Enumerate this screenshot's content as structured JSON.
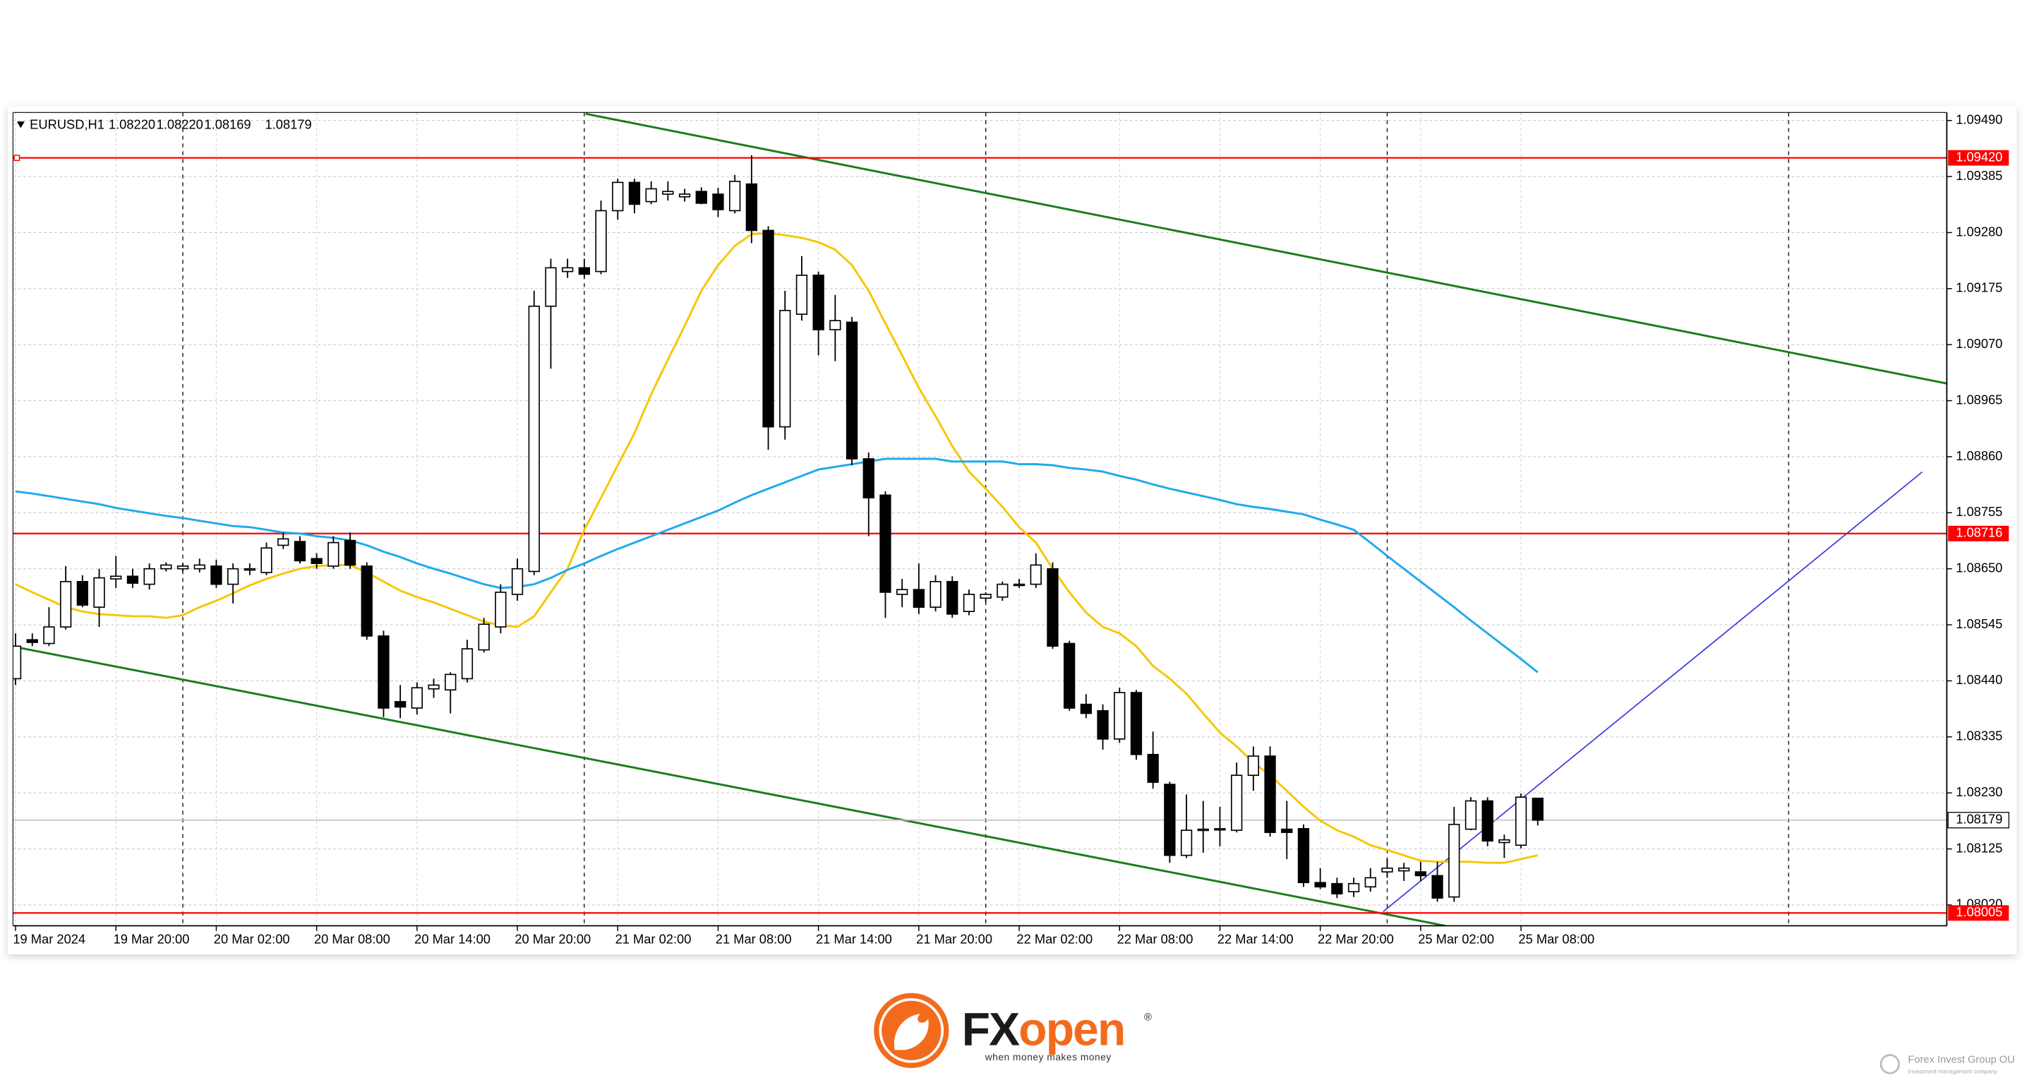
{
  "chart_data": {
    "type": "candlestick",
    "title": "EURUSD,H1",
    "ohlc_labels": [
      "1.08220",
      "1.08220",
      "1.08169",
      "1.08179"
    ],
    "categories": [
      "19 Mar 2024",
      null,
      null,
      null,
      null,
      null,
      "19 Mar 20:00",
      null,
      null,
      null,
      null,
      null,
      "20 Mar 02:00",
      null,
      null,
      null,
      null,
      null,
      "20 Mar 08:00",
      null,
      null,
      null,
      null,
      null,
      "20 Mar 14:00",
      null,
      null,
      null,
      null,
      null,
      "20 Mar 20:00",
      null,
      null,
      null,
      null,
      null,
      "21 Mar 02:00",
      null,
      null,
      null,
      null,
      null,
      "21 Mar 08:00",
      null,
      null,
      null,
      null,
      null,
      "21 Mar 14:00",
      null,
      null,
      null,
      null,
      null,
      "21 Mar 20:00",
      null,
      null,
      null,
      null,
      null,
      "22 Mar 02:00",
      null,
      null,
      null,
      null,
      null,
      "22 Mar 08:00",
      null,
      null,
      null,
      null,
      null,
      "22 Mar 14:00",
      null,
      null,
      null,
      null,
      null,
      "22 Mar 20:00",
      null,
      null,
      null,
      null,
      null,
      "25 Mar 02:00",
      null,
      null,
      null,
      null,
      null,
      "25 Mar 08:00",
      null
    ],
    "open": [
      1.08444,
      1.08517,
      1.0851,
      1.08541,
      1.08626,
      1.08578,
      1.08631,
      1.08636,
      1.08621,
      1.0865,
      1.0865,
      1.0865,
      1.08655,
      1.08621,
      1.08648,
      1.08643,
      1.08694,
      1.08701,
      1.08669,
      1.08655,
      1.08703,
      1.08655,
      1.08524,
      1.08401,
      1.08389,
      1.08425,
      1.08423,
      1.08444,
      1.08498,
      1.08541,
      1.08602,
      1.08645,
      1.09142,
      1.09207,
      1.09214,
      1.09207,
      1.09321,
      1.09374,
      1.09338,
      1.09352,
      1.09347,
      1.09357,
      1.09352,
      1.09321,
      1.09371,
      1.09284,
      1.08916,
      1.09127,
      1.092,
      1.09098,
      1.09112,
      1.08856,
      1.08788,
      1.08602,
      1.08611,
      1.08578,
      1.08626,
      1.0857,
      1.08595,
      1.08597,
      1.08619,
      1.08621,
      1.0865,
      1.0851,
      1.08396,
      1.08384,
      1.08331,
      1.08418,
      1.08302,
      1.08246,
      1.08113,
      1.0816,
      1.08162,
      1.0816,
      1.08263,
      1.08299,
      1.08162,
      1.08163,
      1.08062,
      1.0806,
      1.08045,
      1.08054,
      1.08082,
      1.08084,
      1.08082,
      1.08075,
      1.08035,
      1.08162,
      1.08215,
      1.08137,
      1.08132,
      1.0822
    ],
    "high": [
      1.08529,
      1.08529,
      1.08578,
      1.08655,
      1.08638,
      1.0865,
      1.08674,
      1.0865,
      1.0866,
      1.08662,
      1.0866,
      1.08669,
      1.08667,
      1.0866,
      1.0866,
      1.08699,
      1.08718,
      1.08711,
      1.08679,
      1.08711,
      1.08718,
      1.08662,
      1.08534,
      1.08432,
      1.08437,
      1.08444,
      1.08456,
      1.08517,
      1.08558,
      1.08621,
      1.08669,
      1.09171,
      1.09231,
      1.09231,
      1.09231,
      1.0934,
      1.09381,
      1.09381,
      1.09376,
      1.09376,
      1.09362,
      1.09365,
      1.09364,
      1.09388,
      1.09425,
      1.09292,
      1.09171,
      1.09236,
      1.09207,
      1.09163,
      1.09122,
      1.08868,
      1.08795,
      1.08631,
      1.0866,
      1.08638,
      1.08636,
      1.08611,
      1.08606,
      1.08626,
      1.08631,
      1.08679,
      1.08662,
      1.08515,
      1.08415,
      1.08396,
      1.08427,
      1.08423,
      1.08345,
      1.08251,
      1.08227,
      1.08215,
      1.08204,
      1.08287,
      1.08317,
      1.08317,
      1.08215,
      1.08171,
      1.08089,
      1.08071,
      1.08071,
      1.08089,
      1.08106,
      1.08099,
      1.08101,
      1.08101,
      1.08204,
      1.08222,
      1.08222,
      1.08152,
      1.08229,
      1.0822
    ],
    "low": [
      1.08432,
      1.08505,
      1.08505,
      1.08536,
      1.08578,
      1.08541,
      1.08614,
      1.08614,
      1.08611,
      1.08645,
      1.08645,
      1.08643,
      1.08614,
      1.08585,
      1.08638,
      1.08638,
      1.08687,
      1.0866,
      1.0865,
      1.0865,
      1.0865,
      1.08517,
      1.08372,
      1.0837,
      1.08377,
      1.08408,
      1.08379,
      1.08437,
      1.08493,
      1.08529,
      1.0859,
      1.08638,
      1.09025,
      1.09195,
      1.09195,
      1.09202,
      1.09304,
      1.09316,
      1.09333,
      1.0934,
      1.09338,
      1.09333,
      1.09309,
      1.09316,
      1.0926,
      1.08873,
      1.08892,
      1.09115,
      1.0905,
      1.09039,
      1.08844,
      1.08711,
      1.08558,
      1.08578,
      1.08565,
      1.0857,
      1.08558,
      1.08563,
      1.08587,
      1.0859,
      1.08614,
      1.08614,
      1.085,
      1.08384,
      1.0837,
      1.08311,
      1.08324,
      1.08292,
      1.08238,
      1.08099,
      1.08108,
      1.08118,
      1.0813,
      1.08156,
      1.08234,
      1.08148,
      1.08106,
      1.08054,
      1.0805,
      1.08033,
      1.08035,
      1.08045,
      1.08071,
      1.08065,
      1.08065,
      1.08026,
      1.08026,
      1.0816,
      1.0813,
      1.08108,
      1.08126,
      1.08169
    ],
    "close": [
      1.08505,
      1.08512,
      1.08541,
      1.08626,
      1.08582,
      1.08633,
      1.08636,
      1.08623,
      1.0865,
      1.08657,
      1.08655,
      1.08657,
      1.08621,
      1.0865,
      1.0865,
      1.08689,
      1.08706,
      1.08665,
      1.0866,
      1.08699,
      1.08657,
      1.08524,
      1.08389,
      1.08391,
      1.08427,
      1.08432,
      1.08452,
      1.085,
      1.08546,
      1.08606,
      1.0865,
      1.09142,
      1.09214,
      1.09214,
      1.09202,
      1.09321,
      1.09374,
      1.09333,
      1.09362,
      1.09357,
      1.09352,
      1.09335,
      1.09323,
      1.09376,
      1.09284,
      1.08916,
      1.09134,
      1.092,
      1.09098,
      1.09115,
      1.08856,
      1.08783,
      1.08606,
      1.08611,
      1.08578,
      1.08626,
      1.08565,
      1.08602,
      1.08602,
      1.08621,
      1.08621,
      1.08657,
      1.08505,
      1.08389,
      1.08379,
      1.08331,
      1.08418,
      1.08302,
      1.0825,
      1.08113,
      1.0816,
      1.08162,
      1.08163,
      1.08263,
      1.08299,
      1.08156,
      1.08156,
      1.08062,
      1.08054,
      1.08041,
      1.0806,
      1.08071,
      1.08089,
      1.08089,
      1.08075,
      1.08033,
      1.08171,
      1.08215,
      1.0814,
      1.08142,
      1.08222,
      1.08179
    ],
    "up_color": "#ffffff",
    "down_color": "#000000",
    "ma_lines": [
      {
        "color": "#f7c600",
        "values": [
          1.08621,
          1.08606,
          1.08592,
          1.08578,
          1.0857,
          1.08565,
          1.08563,
          1.08561,
          1.08561,
          1.08558,
          1.08563,
          1.08578,
          1.0859,
          1.08604,
          1.08619,
          1.08631,
          1.08641,
          1.0865,
          1.08655,
          1.08657,
          1.08657,
          1.08643,
          1.08626,
          1.08609,
          1.08597,
          1.08587,
          1.08575,
          1.08563,
          1.08551,
          1.08544,
          1.08541,
          1.08561,
          1.08606,
          1.0865,
          1.08723,
          1.08783,
          1.08844,
          1.08904,
          1.08977,
          1.09042,
          1.09105,
          1.09171,
          1.09219,
          1.09255,
          1.09277,
          1.09279,
          1.09275,
          1.0927,
          1.09262,
          1.09248,
          1.09219,
          1.09171,
          1.0911,
          1.0905,
          1.08989,
          1.08936,
          1.0888,
          1.08832,
          1.088,
          1.08766,
          1.08728,
          1.08699,
          1.0865,
          1.08606,
          1.08568,
          1.08541,
          1.08529,
          1.08505,
          1.08468,
          1.08444,
          1.08416,
          1.08379,
          1.08343,
          1.08317,
          1.08287,
          1.08263,
          1.08234,
          1.08204,
          1.08178,
          1.0816,
          1.08148,
          1.08132,
          1.08123,
          1.08113,
          1.08103,
          1.08101,
          1.08101,
          1.08101,
          1.08099,
          1.08099,
          1.08106,
          1.08113
        ]
      },
      {
        "color": "#1fa9ee",
        "values": [
          1.08795,
          1.08791,
          1.08786,
          1.08781,
          1.08776,
          1.08771,
          1.08764,
          1.08759,
          1.08754,
          1.08749,
          1.08745,
          1.0874,
          1.08735,
          1.0873,
          1.08728,
          1.08723,
          1.08718,
          1.08716,
          1.08711,
          1.08708,
          1.08703,
          1.08694,
          1.08682,
          1.08672,
          1.0866,
          1.0865,
          1.08641,
          1.08631,
          1.08621,
          1.08614,
          1.08616,
          1.08621,
          1.08633,
          1.08648,
          1.0866,
          1.08674,
          1.08687,
          1.08699,
          1.08711,
          1.08723,
          1.08735,
          1.08747,
          1.08759,
          1.08774,
          1.08788,
          1.088,
          1.08812,
          1.08824,
          1.08836,
          1.08841,
          1.08846,
          1.08851,
          1.08856,
          1.08856,
          1.08856,
          1.08856,
          1.08851,
          1.08851,
          1.08851,
          1.08851,
          1.08846,
          1.08846,
          1.08844,
          1.08839,
          1.08836,
          1.08832,
          1.08824,
          1.08817,
          1.08808,
          1.088,
          1.08793,
          1.08786,
          1.08779,
          1.08771,
          1.08766,
          1.08762,
          1.08757,
          1.08752,
          1.08742,
          1.08733,
          1.08723,
          1.08699,
          1.08674,
          1.0865,
          1.08626,
          1.08602,
          1.08578,
          1.08553,
          1.08529,
          1.08505,
          1.08481,
          1.08456
        ]
      }
    ],
    "hlines": [
      {
        "value": 1.0942,
        "label": "1.09420",
        "color": "#ff0000"
      },
      {
        "value": 1.08716,
        "label": "1.08716",
        "color": "#ff0000"
      },
      {
        "value": 1.08005,
        "label": "1.08005",
        "color": "#ff0000"
      }
    ],
    "bid": {
      "value": 1.08179,
      "label": "1.08179",
      "color": "#c0c0c0"
    },
    "ylim": [
      1.07981,
      1.09505
    ],
    "yticks": [
      {
        "value": 1.0949,
        "label": "1.09490"
      },
      {
        "value": 1.09385,
        "label": "1.09385"
      },
      {
        "value": 1.0928,
        "label": "1.09280"
      },
      {
        "value": 1.09175,
        "label": "1.09175"
      },
      {
        "value": 1.0907,
        "label": "1.09070"
      },
      {
        "value": 1.08965,
        "label": "1.08965"
      },
      {
        "value": 1.0886,
        "label": "1.08860"
      },
      {
        "value": 1.08755,
        "label": "1.08755"
      },
      {
        "value": 1.0865,
        "label": "1.08650"
      },
      {
        "value": 1.08545,
        "label": "1.08545"
      },
      {
        "value": 1.0844,
        "label": "1.08440"
      },
      {
        "value": 1.08335,
        "label": "1.08335"
      },
      {
        "value": 1.0823,
        "label": "1.08230"
      },
      {
        "value": 1.08125,
        "label": "1.08125"
      },
      {
        "value": 1.0802,
        "label": "1.08020"
      }
    ],
    "grid": true
  },
  "branding": {
    "logo_a": "FX",
    "logo_b": "open",
    "registered": "®",
    "tagline": "when money makes money",
    "partner": "Forex Invest Group OU",
    "partner_sub": "Investment management company"
  }
}
